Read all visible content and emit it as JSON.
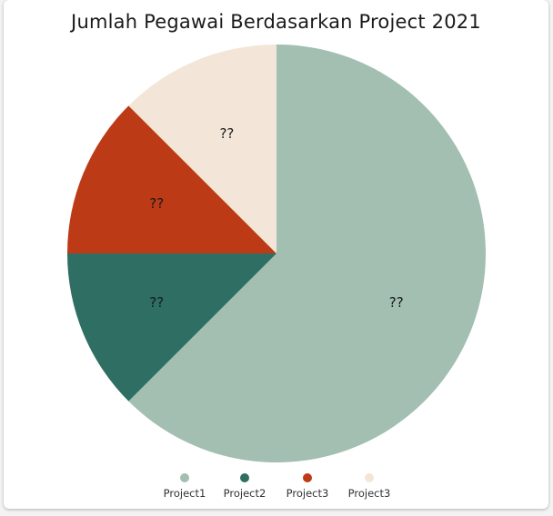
{
  "chart_data": {
    "type": "pie",
    "title": "Jumlah Pegawai Berdasarkan Project 2021",
    "start_angle_deg": 0,
    "direction": "clockwise",
    "legend_position": "bottom",
    "slices": [
      {
        "label": "Project1",
        "value": 62.5,
        "data_label": "??",
        "color": "#a2bfb1"
      },
      {
        "label": "Project2",
        "value": 12.5,
        "data_label": "??",
        "color": "#2f6e62"
      },
      {
        "label": "Project3",
        "value": 12.5,
        "data_label": "??",
        "color": "#bc3a15"
      },
      {
        "label": "Project3",
        "value": 12.5,
        "data_label": "??",
        "color": "#f3e6d8"
      }
    ]
  }
}
